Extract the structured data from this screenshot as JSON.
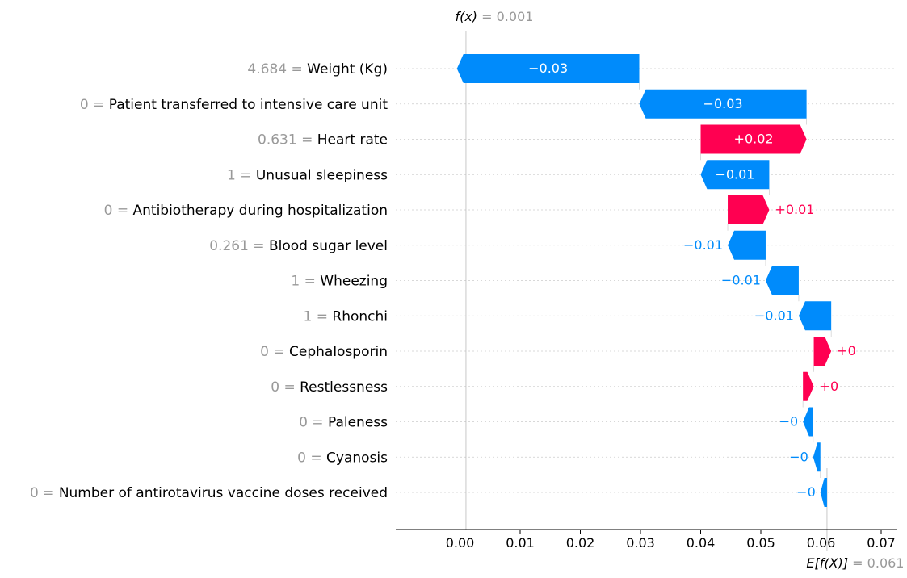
{
  "chart_data": {
    "type": "waterfall",
    "fx_symbol": "f(x)",
    "fx_value": "0.001",
    "ex_symbol": "E[f(X)]",
    "ex_value": "0.061",
    "base_value": 0.061,
    "final_value": 0.001,
    "xlim": [
      -0.009,
      0.074
    ],
    "x_ticks": [
      "0.00",
      "0.01",
      "0.02",
      "0.03",
      "0.04",
      "0.05",
      "0.06",
      "0.07"
    ],
    "x_tick_values": [
      0,
      0.01,
      0.02,
      0.03,
      0.04,
      0.05,
      0.06,
      0.07
    ],
    "colors": {
      "positive": "#ff0051",
      "negative": "#008bfb",
      "value_text": "#999999",
      "grid": "#cccccc"
    },
    "features": [
      {
        "value": "4.684",
        "name": "Weight (Kg)",
        "shap": -0.0303,
        "label": "−0.03"
      },
      {
        "value": "0",
        "name": "Patient transferred to intensive care unit",
        "shap": -0.0278,
        "label": "−0.03"
      },
      {
        "value": "0.631",
        "name": "Heart rate",
        "shap": 0.0176,
        "label": "+0.02"
      },
      {
        "value": "1",
        "name": "Unusual sleepiness",
        "shap": -0.0114,
        "label": "−0.01"
      },
      {
        "value": "0",
        "name": "Antibiotherapy during hospitalization",
        "shap": 0.0069,
        "label": "+0.01"
      },
      {
        "value": "0.261",
        "name": "Blood sugar level",
        "shap": -0.0063,
        "label": "−0.01"
      },
      {
        "value": "1",
        "name": "Wheezing",
        "shap": -0.0055,
        "label": "−0.01"
      },
      {
        "value": "1",
        "name": "Rhonchi",
        "shap": -0.0054,
        "label": "−0.01"
      },
      {
        "value": "0",
        "name": "Cephalosporin",
        "shap": 0.0029,
        "label": "+0"
      },
      {
        "value": "0",
        "name": "Restlessness",
        "shap": 0.0018,
        "label": "+0"
      },
      {
        "value": "0",
        "name": "Paleness",
        "shap": -0.0017,
        "label": "−0"
      },
      {
        "value": "0",
        "name": "Cyanosis",
        "shap": -0.0012,
        "label": "−0"
      },
      {
        "value": "0",
        "name": "Number of antirotavirus vaccine doses received",
        "shap": -0.0011,
        "label": "−0"
      }
    ]
  }
}
